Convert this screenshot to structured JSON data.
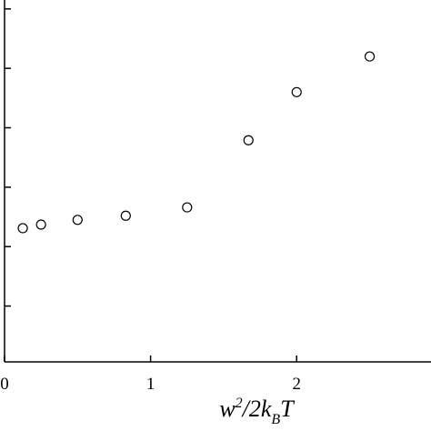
{
  "chart_data": {
    "type": "scatter",
    "xlabel": [
      "w",
      "2",
      "/2k",
      "B",
      "T"
    ],
    "x": [
      0.125,
      0.25,
      0.5,
      0.83,
      1.25,
      1.67,
      2.0,
      2.5
    ],
    "values": [
      2.31,
      2.37,
      2.45,
      2.52,
      2.66,
      3.79,
      4.6,
      5.2
    ],
    "color": "#000000",
    "xlim": [
      0,
      2.92
    ],
    "xticks": [
      0,
      1,
      2
    ],
    "ylim": [
      0.06,
      6.15
    ],
    "yticks": [
      1,
      2,
      3,
      4,
      5,
      6
    ]
  }
}
